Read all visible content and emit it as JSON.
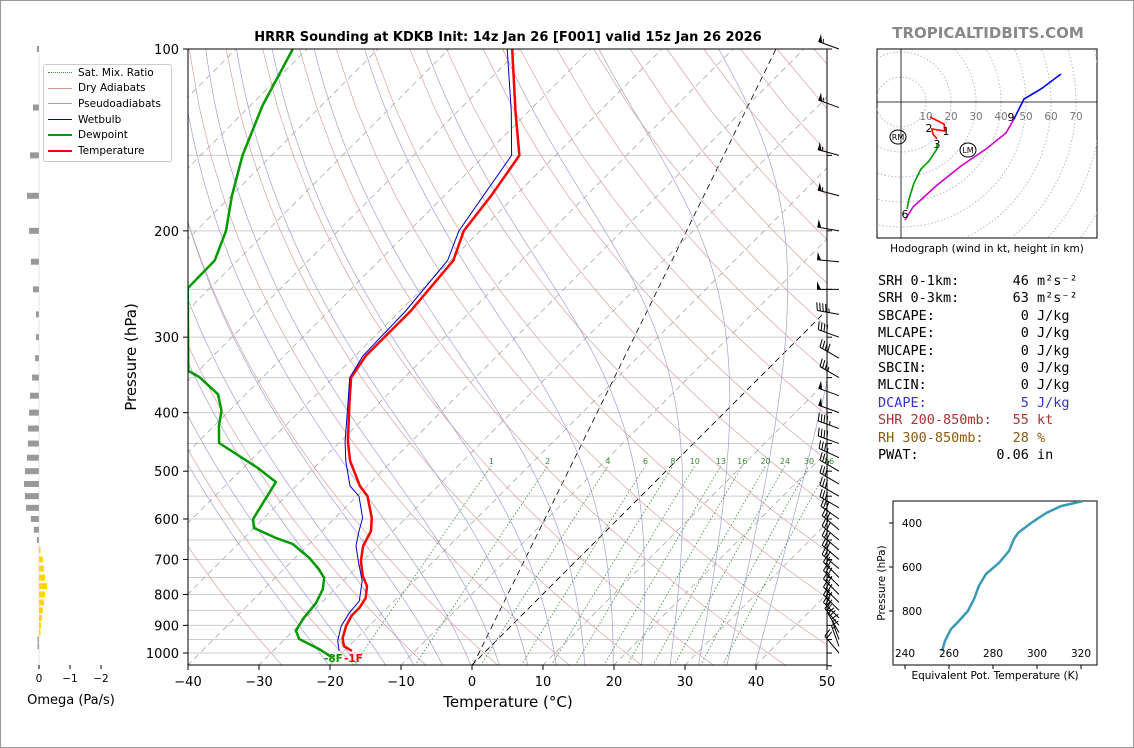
{
  "title": "HRRR Sounding at KDKB Init: 14z Jan 26 [F001] valid 15z Jan 26 2026",
  "logo": "TROPICALTIDBITS.COM",
  "legend": [
    {
      "label": "Sat. Mix. Ratio",
      "color": "#3a8a3a",
      "style": "dotted"
    },
    {
      "label": "Dry Adiabats",
      "color": "#c99",
      "style": "solid"
    },
    {
      "label": "Pseudoadiabats",
      "color": "#99c",
      "style": "solid"
    },
    {
      "label": "Wetbulb",
      "color": "#0000cc",
      "style": "solid"
    },
    {
      "label": "Dewpoint",
      "color": "#009900",
      "style": "thick"
    },
    {
      "label": "Temperature",
      "color": "#ff0000",
      "style": "thick"
    }
  ],
  "sfc_labels": {
    "dewpoint": "-8F",
    "temperature": "-1F"
  },
  "stats": [
    {
      "label": "SRH 0-1km:",
      "value": "46",
      "unit": "m²s⁻²",
      "color": "#000"
    },
    {
      "label": "SRH 0-3km:",
      "value": "63",
      "unit": "m²s⁻²",
      "color": "#000"
    },
    {
      "label": "SBCAPE:",
      "value": "0",
      "unit": "J/kg",
      "color": "#000"
    },
    {
      "label": "MLCAPE:",
      "value": "0",
      "unit": "J/kg",
      "color": "#000"
    },
    {
      "label": "MUCAPE:",
      "value": "0",
      "unit": "J/kg",
      "color": "#000"
    },
    {
      "label": "SBCIN:",
      "value": "0",
      "unit": "J/kg",
      "color": "#000"
    },
    {
      "label": "MLCIN:",
      "value": "0",
      "unit": "J/kg",
      "color": "#000"
    },
    {
      "label": "DCAPE:",
      "value": "5",
      "unit": "J/kg",
      "color": "#3333cc"
    },
    {
      "label": "SHR 200-850mb:",
      "value": "55",
      "unit": "kt",
      "color": "#aa3333"
    },
    {
      "label": "RH 300-850mb:",
      "value": "28",
      "unit": "%",
      "color": "#8a5a14"
    },
    {
      "label": "PWAT:",
      "value": "0.06",
      "unit": "in",
      "color": "#000"
    }
  ],
  "chart_data": [
    {
      "type": "line",
      "name": "skewt",
      "title": "HRRR Sounding at KDKB Init: 14z Jan 26 [F001] valid 15z Jan 26 2026",
      "xlabel": "Temperature (°C)",
      "ylabel": "Pressure (hPa)",
      "xlim": [
        -40,
        50
      ],
      "ylim": [
        1050,
        100
      ],
      "xticks": [
        "−40",
        "−30",
        "−20",
        "−10",
        "0",
        "10",
        "20",
        "30",
        "40",
        "50"
      ],
      "yticks": [
        "100",
        "200",
        "300",
        "400",
        "500",
        "600",
        "700",
        "800",
        "900",
        "1000"
      ],
      "mixing_ratio_labels": [
        "1",
        "2",
        "4",
        "6",
        "8",
        "10",
        "13",
        "16",
        "20",
        "24",
        "30",
        "36"
      ],
      "series": [
        {
          "name": "Temperature",
          "color": "#ff0000",
          "p": [
            992,
            974,
            945,
            903,
            868,
            842,
            811,
            775,
            746,
            704,
            665,
            628,
            598,
            550,
            529,
            481,
            446,
            383,
            350,
            322,
            272,
            224,
            200,
            175,
            150,
            127,
            100
          ],
          "t": [
            -18.9,
            -20.7,
            -22.0,
            -23.2,
            -23.9,
            -23.9,
            -24.4,
            -25.9,
            -27.9,
            -30.3,
            -32.1,
            -33.1,
            -34.8,
            -38.5,
            -41.0,
            -45.9,
            -49.0,
            -54.4,
            -57.5,
            -58.5,
            -58.5,
            -59.6,
            -62.3,
            -63.4,
            -65.1,
            -71.8,
            -81.1
          ]
        },
        {
          "name": "Dewpoint",
          "color": "#009900",
          "p": [
            1019,
            985,
            948,
            919,
            878,
            827,
            784,
            751,
            726,
            696,
            660,
            645,
            621,
            600,
            521,
            494,
            449,
            421,
            397,
            373,
            349,
            341,
            249,
            224,
            200,
            175,
            150,
            124,
            100
          ],
          "t": [
            -20.6,
            -23.8,
            -28.0,
            -29.6,
            -30.3,
            -30.7,
            -31.7,
            -33.1,
            -35.1,
            -38.0,
            -42.3,
            -45.5,
            -50.0,
            -51.4,
            -53.4,
            -57.9,
            -66.9,
            -69.3,
            -71.1,
            -73.9,
            -79.0,
            -81.4,
            -93.1,
            -93.2,
            -95.8,
            -99.9,
            -104.1,
            -108.3,
            -112
          ]
        },
        {
          "name": "Wetbulb",
          "color": "#0000cc",
          "p": [
            992,
            955,
            903,
            859,
            820,
            760,
            710,
            665,
            628,
            598,
            550,
            529,
            481,
            446,
            383,
            350,
            322,
            272,
            224,
            200,
            175,
            150,
            127,
            100
          ],
          "t": [
            -20.7,
            -22.3,
            -23.9,
            -24.6,
            -24.9,
            -27.3,
            -30.3,
            -33.1,
            -34.8,
            -36.1,
            -39.7,
            -42.4,
            -46.5,
            -49.4,
            -54.6,
            -57.7,
            -58.9,
            -59.2,
            -60.4,
            -63.0,
            -64.5,
            -66.2,
            -72.4,
            -81.8
          ]
        }
      ],
      "wind": {
        "p": [
          100,
          125,
          150,
          175,
          200,
          225,
          250,
          275,
          300,
          325,
          350,
          375,
          400,
          425,
          450,
          475,
          500,
          525,
          550,
          575,
          600,
          625,
          650,
          675,
          700,
          725,
          750,
          775,
          800,
          825,
          850,
          875,
          900,
          925,
          950,
          975,
          1000
        ],
        "speed_kt": [
          55,
          55,
          55,
          55,
          50,
          50,
          50,
          45,
          40,
          40,
          35,
          50,
          50,
          45,
          40,
          35,
          35,
          30,
          30,
          30,
          30,
          30,
          30,
          30,
          30,
          30,
          30,
          30,
          30,
          30,
          30,
          30,
          25,
          20,
          15,
          15,
          20
        ],
        "dir_deg": [
          290,
          290,
          285,
          285,
          280,
          275,
          270,
          280,
          290,
          300,
          300,
          290,
          290,
          290,
          290,
          295,
          300,
          300,
          300,
          300,
          305,
          310,
          310,
          310,
          310,
          310,
          315,
          315,
          315,
          315,
          315,
          315,
          320,
          330,
          340,
          340,
          320
        ]
      }
    },
    {
      "type": "bar",
      "name": "omega",
      "xlabel": "Omega (Pa/s)",
      "xticks": [
        "0",
        "−1",
        "−2"
      ],
      "p": [
        100,
        125,
        150,
        175,
        200,
        225,
        250,
        275,
        300,
        325,
        350,
        375,
        400,
        425,
        450,
        475,
        500,
        525,
        550,
        575,
        600,
        625,
        650,
        675,
        700,
        725,
        750,
        775,
        800,
        825,
        850,
        875,
        900,
        925,
        950,
        975
      ],
      "values": [
        0.07,
        0.2,
        0.3,
        0.4,
        0.33,
        0.27,
        0.2,
        0.1,
        0.1,
        0.13,
        0.23,
        0.3,
        0.33,
        0.37,
        0.37,
        0.4,
        0.47,
        0.5,
        0.47,
        0.43,
        0.27,
        0.17,
        0.07,
        -0.05,
        -0.13,
        -0.17,
        -0.2,
        -0.27,
        -0.2,
        -0.17,
        -0.13,
        -0.1,
        -0.07,
        -0.03,
        0.03,
        0.03
      ]
    },
    {
      "type": "line",
      "name": "hodograph",
      "caption": "Hodograph (wind in kt, height in km)",
      "ring_labels": [
        "10",
        "20",
        "30",
        "40",
        "50",
        "60",
        "70"
      ],
      "segments": [
        {
          "color": "#ff0000",
          "uv": [
            [
              11.6,
              -6
            ],
            [
              17.2,
              -8.8
            ],
            [
              17.6,
              -11.6
            ],
            [
              12.4,
              -10.8
            ],
            [
              12.8,
              -12.8
            ],
            [
              14.4,
              -14.8
            ]
          ]
        },
        {
          "color": "#009900",
          "uv": [
            [
              14.4,
              -16.8
            ],
            [
              14.4,
              -18.8
            ],
            [
              11.2,
              -23.6
            ],
            [
              8,
              -26.8
            ],
            [
              5.2,
              -32.4
            ],
            [
              3.2,
              -38.8
            ],
            [
              2.4,
              -42.8
            ]
          ]
        },
        {
          "color": "#cc00cc",
          "uv": [
            [
              1.6,
              -47.2
            ],
            [
              4.8,
              -42
            ],
            [
              14,
              -33.6
            ],
            [
              24,
              -25.6
            ],
            [
              34,
              -18.8
            ],
            [
              42,
              -12.4
            ],
            [
              45.2,
              -6.8
            ]
          ]
        },
        {
          "color": "#0000ff",
          "uv": [
            [
              45.2,
              -6.8
            ],
            [
              49.2,
              1.2
            ],
            [
              56,
              5.2
            ],
            [
              64,
              11.2
            ]
          ]
        }
      ],
      "height_labels": [
        {
          "t": "1",
          "uv": [
            18,
            -11.6
          ]
        },
        {
          "t": "2",
          "uv": [
            11.2,
            -10.4
          ]
        },
        {
          "t": "3",
          "uv": [
            14.4,
            -16.8
          ]
        },
        {
          "t": "6",
          "uv": [
            1.6,
            -44.8
          ]
        },
        {
          "t": "9",
          "uv": [
            44,
            -6
          ]
        }
      ],
      "markers": [
        {
          "t": "RM",
          "uv": [
            -1.2,
            -14
          ]
        },
        {
          "t": "LM",
          "uv": [
            26.8,
            -19.2
          ]
        }
      ]
    },
    {
      "type": "line",
      "name": "theta_e",
      "xlabel": "Equivalent Pot. Temperature (K)",
      "ylabel": "Pressure (hPa)",
      "xticks": [
        "240",
        "260",
        "280",
        "300",
        "320"
      ],
      "yticks": [
        "400",
        "600",
        "800"
      ],
      "p": [
        982,
        936,
        882,
        850,
        800,
        745,
        686,
        632,
        582,
        527,
        473,
        445,
        400,
        355,
        323,
        300
      ],
      "theta_e": [
        256.8,
        258.2,
        260.9,
        264.1,
        268.6,
        271.4,
        273.6,
        276.8,
        282.7,
        287.3,
        289.5,
        291.4,
        297.3,
        304.1,
        310.9,
        320.9
      ]
    }
  ]
}
